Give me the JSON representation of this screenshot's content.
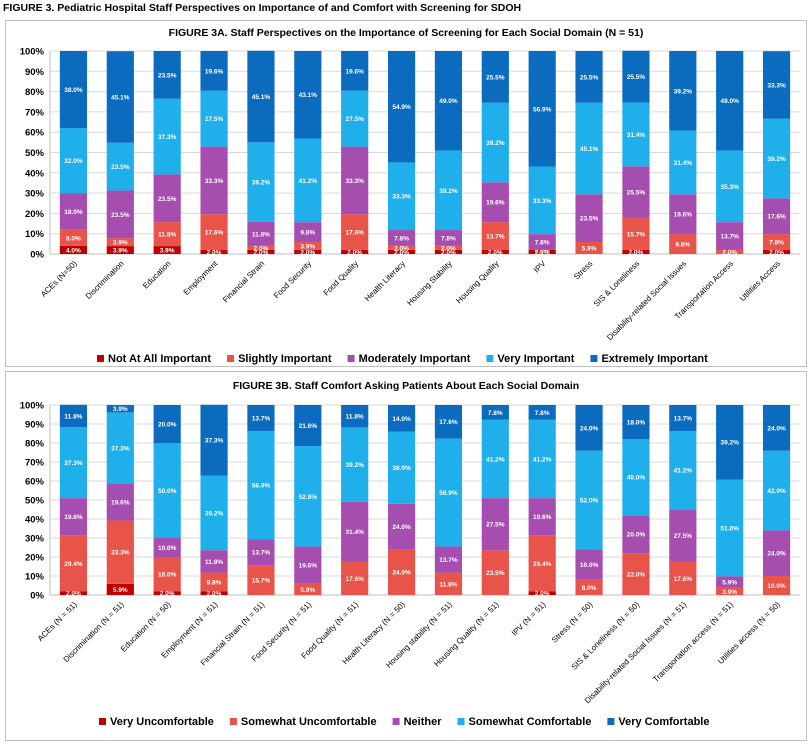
{
  "figure_title": "FIGURE 3. Pediatric Hospital Staff Perspectives on Importance of and Comfort with Screening for SDOH",
  "chart_data": [
    {
      "id": "3A",
      "type": "bar",
      "stacked": true,
      "title": "FIGURE 3A. Staff Perspectives on the Importance of Screening for Each Social Domain (N = 51)",
      "xlabel": "",
      "ylabel": "",
      "ylim": [
        0,
        100
      ],
      "yticks": [
        "0%",
        "10%",
        "20%",
        "30%",
        "40%",
        "50%",
        "60%",
        "70%",
        "80%",
        "90%",
        "100%"
      ],
      "legend_position": "bottom",
      "categories": [
        "ACEs (N=50)",
        "Discrimination",
        "Education",
        "Employment",
        "Financial Strain",
        "Food Security",
        "Food Quality",
        "Health Literacy",
        "Housing Stability",
        "Housing Quality",
        "IPV",
        "Stress",
        "SIS & Loneliness",
        "Disability-related Social Issues",
        "Transportation Access",
        "Utilities Access"
      ],
      "series": [
        {
          "name": "Not At All Important",
          "color": "#c00000",
          "values": [
            4.0,
            3.9,
            3.9,
            2.0,
            2.0,
            2.0,
            2.0,
            2.0,
            2.0,
            2.0,
            2.0,
            0.0,
            2.0,
            0.0,
            0.0,
            2.0
          ],
          "labels": [
            "4.0%",
            "3.9%",
            "3.9%",
            "2.0%",
            "2.0%",
            "2.0%",
            "2.0%",
            "2.0%",
            "2.0%",
            "2.0%",
            "2.0%",
            "0.0%",
            "2.0%",
            "",
            "",
            "2.0%"
          ]
        },
        {
          "name": "Slightly Important",
          "color": "#e8534a",
          "values": [
            8.0,
            3.9,
            11.8,
            17.6,
            2.0,
            3.9,
            17.6,
            2.0,
            2.0,
            13.7,
            0.0,
            5.9,
            15.7,
            9.8,
            2.0,
            7.8
          ],
          "labels": [
            "8.0%",
            "3.9%",
            "11.8%",
            "17.6%",
            "2.0%",
            "3.9%",
            "17.6%",
            "2.0%",
            "2.0%",
            "13.7%",
            "0.0%",
            "5.9%",
            "15.7%",
            "9.8%",
            "2.0%",
            "7.8%"
          ]
        },
        {
          "name": "Moderately Important",
          "color": "#a64db0",
          "values": [
            18.0,
            23.5,
            23.5,
            33.3,
            11.8,
            9.8,
            33.3,
            7.8,
            7.8,
            19.6,
            7.8,
            23.5,
            25.5,
            19.6,
            13.7,
            17.6
          ],
          "labels": [
            "18.0%",
            "23.5%",
            "23.5%",
            "33.3%",
            "11.8%",
            "9.8%",
            "33.3%",
            "7.8%",
            "7.8%",
            "19.6%",
            "7.8%",
            "23.5%",
            "25.5%",
            "19.6%",
            "13.7%",
            "17.6%"
          ]
        },
        {
          "name": "Very Important",
          "color": "#1fb0ec",
          "values": [
            32.0,
            23.5,
            37.3,
            27.5,
            39.2,
            41.2,
            27.5,
            33.3,
            39.2,
            39.2,
            33.3,
            45.1,
            31.4,
            31.4,
            35.3,
            39.2
          ],
          "labels": [
            "32.0%",
            "23.5%",
            "37.3%",
            "27.5%",
            "39.2%",
            "41.2%",
            "27.5%",
            "33.3%",
            "39.2%",
            "39.2%",
            "33.3%",
            "45.1%",
            "31.4%",
            "31.4%",
            "35.3%",
            "39.2%"
          ]
        },
        {
          "name": "Extremely Important",
          "color": "#0b6cbf",
          "values": [
            38.0,
            45.1,
            23.5,
            19.6,
            45.1,
            43.1,
            19.6,
            54.9,
            49.0,
            25.5,
            56.9,
            25.5,
            25.5,
            39.2,
            49.0,
            33.3
          ],
          "labels": [
            "38.0%",
            "45.1%",
            "23.5%",
            "19.6%",
            "45.1%",
            "43.1%",
            "19.6%",
            "54.9%",
            "49.0%",
            "25.5%",
            "56.9%",
            "25.5%",
            "25.5%",
            "39.2%",
            "49.0%",
            "33.3%"
          ]
        }
      ]
    },
    {
      "id": "3B",
      "type": "bar",
      "stacked": true,
      "title": "FIGURE 3B. Staff Comfort Asking Patients About Each Social Domain",
      "xlabel": "",
      "ylabel": "",
      "ylim": [
        0,
        100
      ],
      "yticks": [
        "0%",
        "10%",
        "20%",
        "30%",
        "40%",
        "50%",
        "60%",
        "70%",
        "80%",
        "90%",
        "100%"
      ],
      "legend_position": "bottom",
      "categories": [
        "ACEs (N = 51)",
        "Discrimination (N = 51)",
        "Education (N = 50)",
        "Employment (N = 51)",
        "Financial Strain (N = 51)",
        "Food Security (N = 51)",
        "Food Quality (N = 51)",
        "Health Literacy (N = 50)",
        "Housing stability (N = 51)",
        "Housing Quality (N = 51)",
        "IPV (N = 51)",
        "Stress (N = 50)",
        "SIS & Loneliness (N = 50)",
        "Disability-related Social Issues (N = 51)",
        "Transportation access (N = 51)",
        "Utilities access (N = 50)"
      ],
      "series": [
        {
          "name": "Very Uncomfortable",
          "color": "#c00000",
          "values": [
            2.0,
            5.9,
            2.0,
            2.0,
            0,
            0,
            0,
            0,
            0,
            0,
            2.0,
            0,
            0,
            0,
            0,
            0
          ],
          "labels": [
            "2.0%",
            "5.9%",
            "2.0%",
            "2.0%",
            "",
            "",
            "",
            "",
            "",
            "",
            "2.0%",
            "",
            "",
            "",
            "",
            ""
          ]
        },
        {
          "name": "Somewhat Uncomfortable",
          "color": "#e8534a",
          "values": [
            29.4,
            33.3,
            18.0,
            9.8,
            15.7,
            5.9,
            17.6,
            24.0,
            11.8,
            23.5,
            29.4,
            8.0,
            22.0,
            17.6,
            3.9,
            10.0
          ],
          "labels": [
            "29.4%",
            "33.3%",
            "18.0%",
            "9.8%",
            "15.7%",
            "5.9%",
            "17.6%",
            "24.0%",
            "11.8%",
            "23.5%",
            "29.4%",
            "8.0%",
            "22.0%",
            "17.6%",
            "3.9%",
            "10.0%"
          ]
        },
        {
          "name": "Neither",
          "color": "#a64db0",
          "values": [
            19.6,
            19.6,
            10.0,
            11.8,
            13.7,
            19.6,
            31.4,
            24.0,
            13.7,
            27.5,
            19.6,
            16.0,
            20.0,
            27.5,
            5.9,
            24.0
          ],
          "labels": [
            "19.6%",
            "19.6%",
            "10.0%",
            "11.8%",
            "13.7%",
            "19.6%",
            "31.4%",
            "24.0%",
            "13.7%",
            "27.5%",
            "19.6%",
            "16.0%",
            "20.0%",
            "27.5%",
            "5.9%",
            "24.0%"
          ]
        },
        {
          "name": "Somewhat Comfortable",
          "color": "#1fb0ec",
          "values": [
            37.3,
            37.3,
            50.0,
            39.2,
            56.9,
            52.9,
            39.2,
            38.0,
            56.9,
            41.2,
            41.2,
            52.0,
            40.0,
            41.2,
            51.0,
            42.0
          ],
          "labels": [
            "37.3%",
            "37.3%",
            "50.0%",
            "39.2%",
            "56.9%",
            "52.9%",
            "39.2%",
            "38.0%",
            "56.9%",
            "41.2%",
            "41.2%",
            "52.0%",
            "40.0%",
            "41.2%",
            "51.0%",
            "42.0%"
          ]
        },
        {
          "name": "Very Comfortable",
          "color": "#0b6cbf",
          "values": [
            11.8,
            3.9,
            20.0,
            37.3,
            13.7,
            21.6,
            11.8,
            14.0,
            17.6,
            7.8,
            7.8,
            24.0,
            18.0,
            13.7,
            39.2,
            24.0
          ],
          "labels": [
            "11.8%",
            "3.9%",
            "20.0%",
            "37.3%",
            "13.7%",
            "21.6%",
            "11.8%",
            "14.0%",
            "17.6%",
            "7.8%",
            "7.8%",
            "24.0%",
            "18.0%",
            "13.7%",
            "39.2%",
            "24.0%"
          ]
        }
      ]
    }
  ]
}
